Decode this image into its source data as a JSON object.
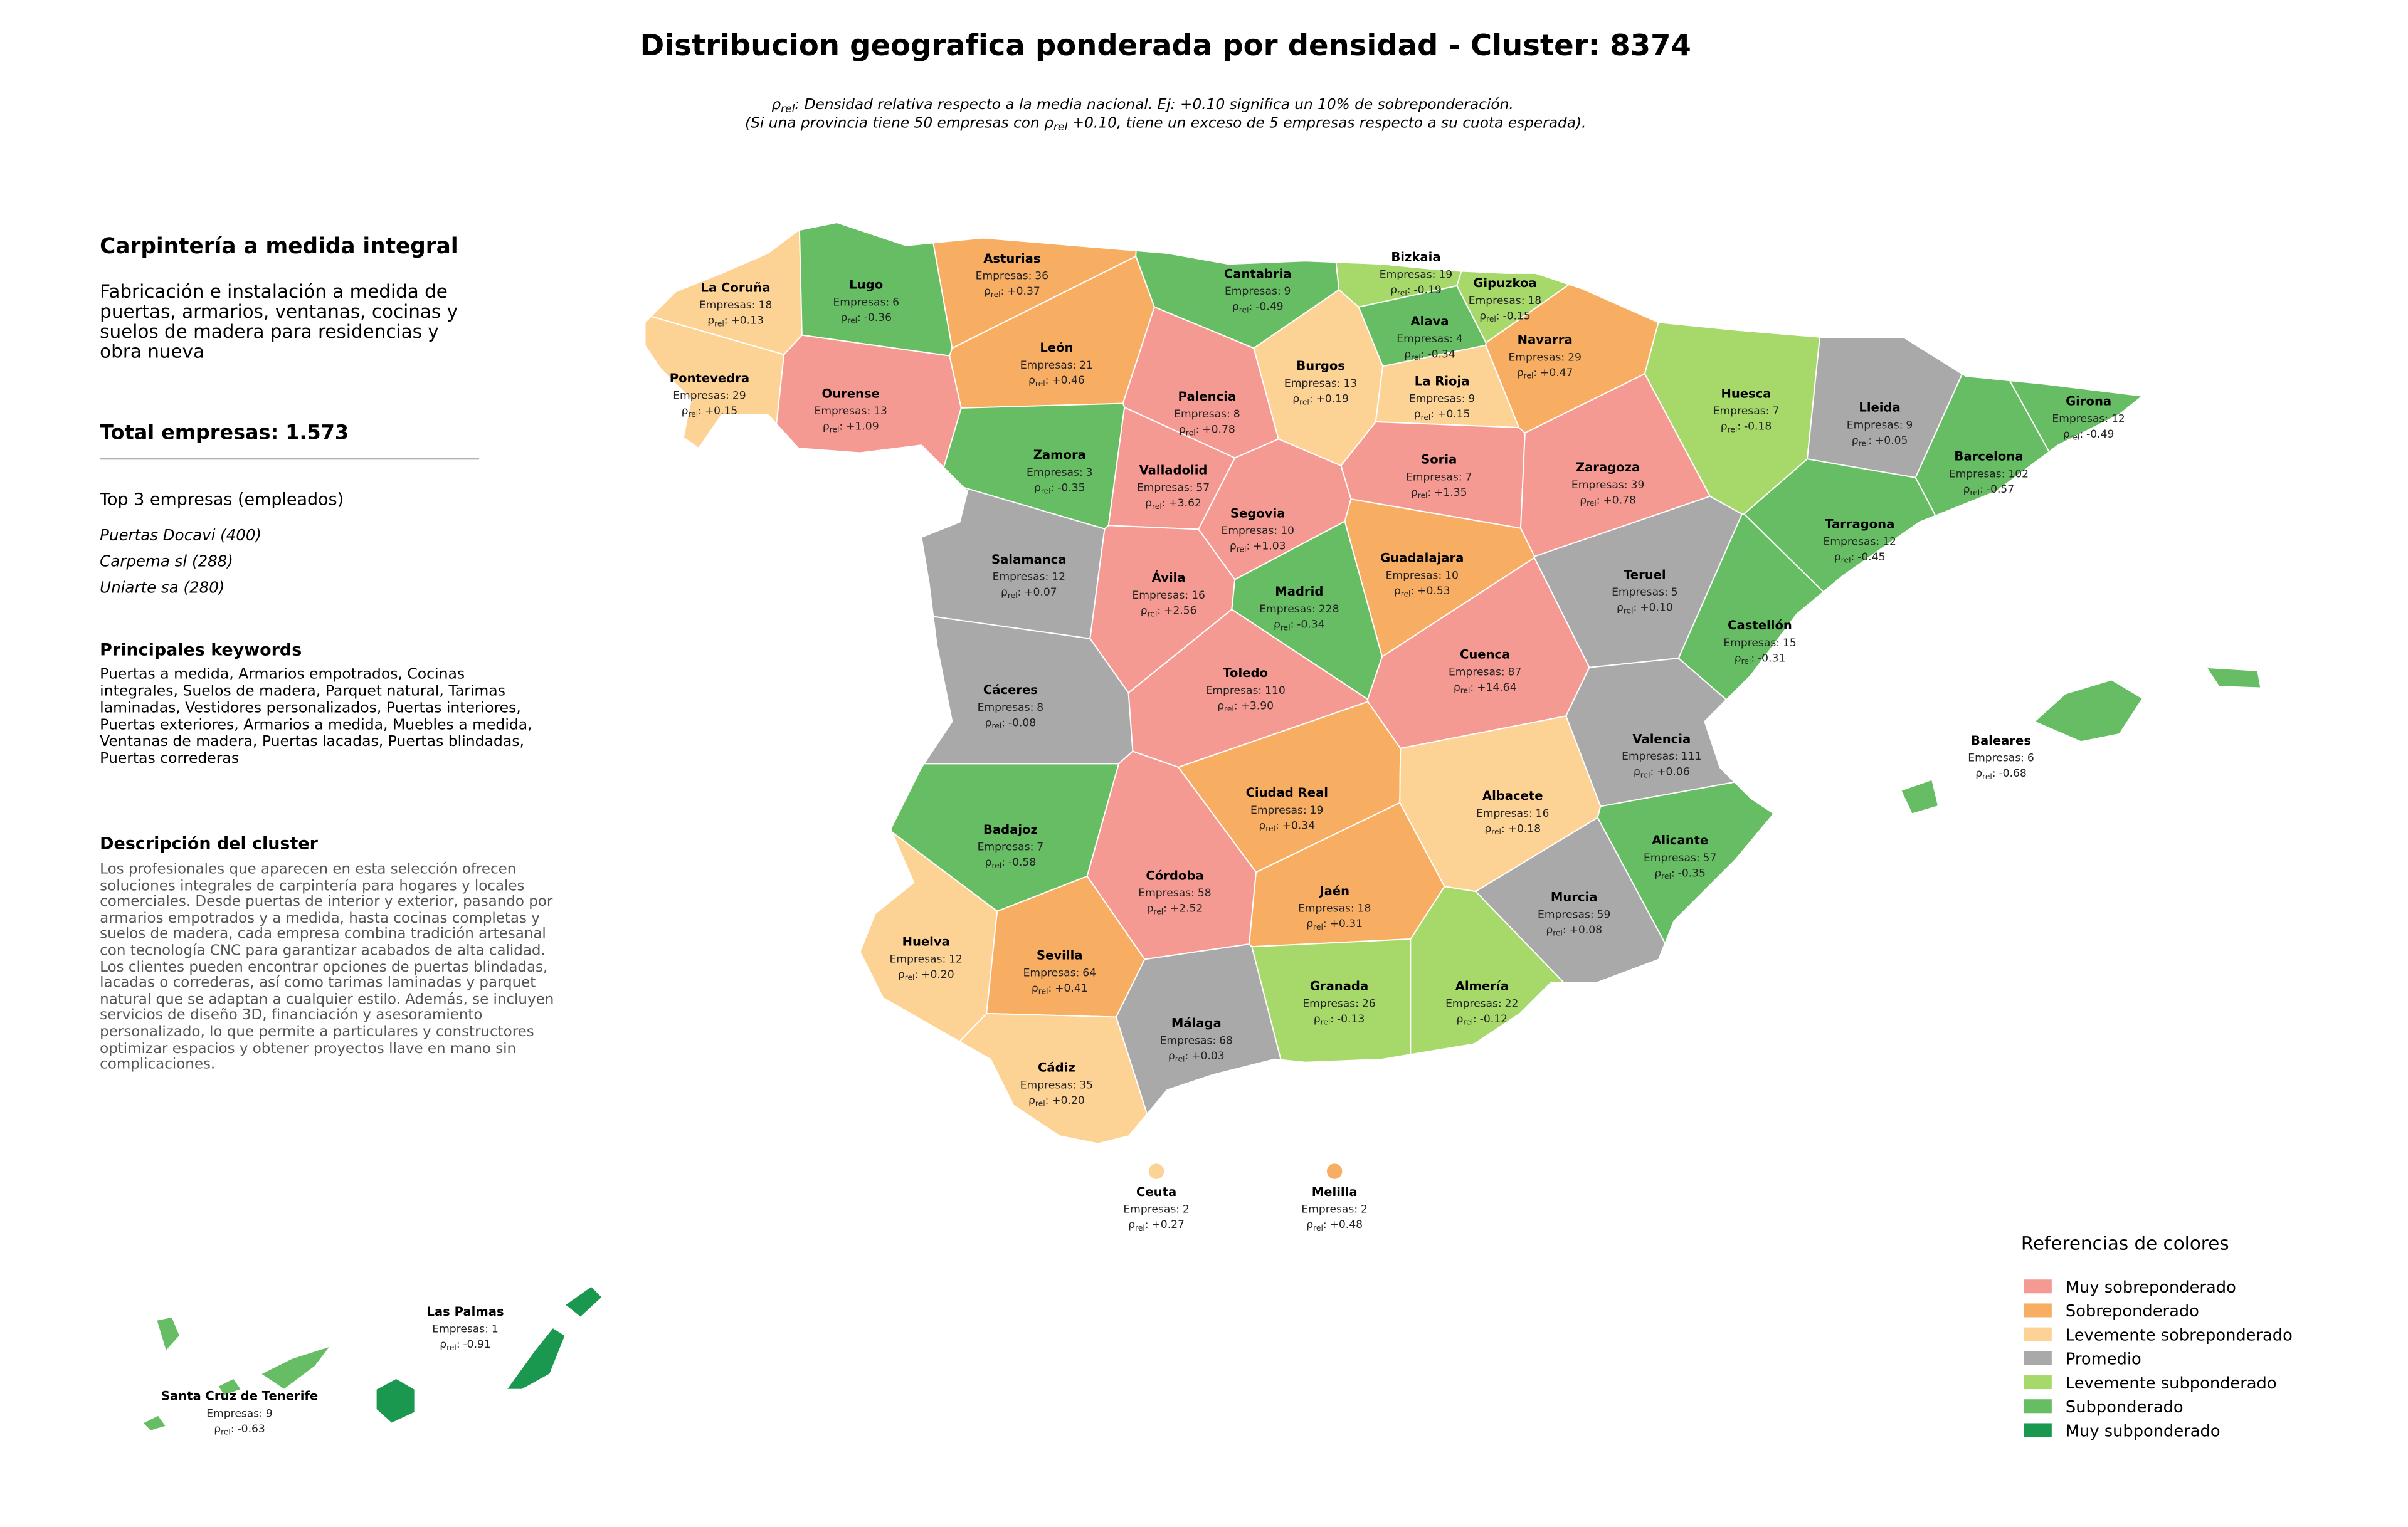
{
  "title": "Distribucion geografica ponderada por densidad - Cluster: 8374",
  "subtitle": {
    "line1_text": ": Densidad relativa respecto a la media nacional. Ej: +0.10 significa un 10% de sobreponderación.",
    "line2_start": "(Si una provincia tiene 50 empresas con ",
    "line2_end": " +0.10, tiene un exceso de 5 empresas respecto a su cuota esperada)."
  },
  "panel": {
    "heading": "Carpintería a medida integral",
    "description": "Fabricación e instalación a medida de puertas, armarios, ventanas, cocinas y suelos de madera para residencias y obra nueva",
    "total": "Total empresas: 1.573",
    "top_heading": "Top 3 empresas (empleados)",
    "top_companies": [
      "Puertas Docavi (400)",
      "Carpema sl (288)",
      "Uniarte sa (280)"
    ],
    "keywords_heading": "Principales keywords",
    "keywords": "Puertas a medida, Armarios empotrados, Cocinas integrales, Suelos de madera, Parquet natural, Tarimas laminadas, Vestidores personalizados, Puertas interiores, Puertas exteriores, Armarios a medida, Muebles a medida, Ventanas de madera, Puertas lacadas, Puertas blindadas, Puertas correderas",
    "cluster_heading": "Descripción del cluster",
    "cluster_text": "Los profesionales que aparecen en esta selección ofrecen soluciones integrales de carpintería para hogares y locales comerciales. Desde puertas de interior y exterior, pasando por armarios empotrados y a medida, hasta cocinas completas y suelos de madera, cada empresa combina tradición artesanal con tecnología CNC para garantizar acabados de alta calidad. Los clientes pueden encontrar opciones de puertas blindadas, lacadas o correderas, así como tarimas laminadas y parquet natural que se adaptan a cualquier estilo. Además, se incluyen servicios de diseño 3D, financiación y asesoramiento personalizado, lo que permite a particulares y constructores optimizar espacios y obtener proyectos llave en mano sin complicaciones."
  },
  "legend": {
    "title": "Referencias de colores",
    "items": [
      {
        "label": "Muy sobreponderado",
        "color": "#f59a92"
      },
      {
        "label": "Sobreponderado",
        "color": "#f8ae62"
      },
      {
        "label": "Levemente sobreponderado",
        "color": "#fdd395"
      },
      {
        "label": "Promedio",
        "color": "#a9a9a9"
      },
      {
        "label": "Levemente subponderado",
        "color": "#a6d96a"
      },
      {
        "label": "Subponderado",
        "color": "#66bd63"
      },
      {
        "label": "Muy subponderado",
        "color": "#1a9850"
      }
    ]
  },
  "map": {
    "count_label": "Empresas:",
    "rho_symbol": "ρ",
    "rho_sub": "rel",
    "rho_suffix": ":",
    "provinces": [
      {
        "name": "La Coruña",
        "empresas": 18,
        "rho": 0.13,
        "rho_label": "+0.13",
        "color": "#fdd395"
      },
      {
        "name": "Lugo",
        "empresas": 6,
        "rho": -0.36,
        "rho_label": "-0.36",
        "color": "#66bd63"
      },
      {
        "name": "Asturias",
        "empresas": 36,
        "rho": 0.37,
        "rho_label": "+0.37",
        "color": "#f8ae62"
      },
      {
        "name": "Cantabria",
        "empresas": 9,
        "rho": -0.49,
        "rho_label": "-0.49",
        "color": "#66bd63"
      },
      {
        "name": "Bizkaia",
        "empresas": 19,
        "rho": -0.19,
        "rho_label": "-0.19",
        "color": "#a6d96a"
      },
      {
        "name": "Gipuzkoa",
        "empresas": 18,
        "rho": -0.15,
        "rho_label": "-0.15",
        "color": "#a6d96a"
      },
      {
        "name": "Alava",
        "empresas": 4,
        "rho": -0.34,
        "rho_label": "-0.34",
        "color": "#66bd63"
      },
      {
        "name": "Navarra",
        "empresas": 29,
        "rho": 0.47,
        "rho_label": "+0.47",
        "color": "#f8ae62"
      },
      {
        "name": "Pontevedra",
        "empresas": 29,
        "rho": 0.15,
        "rho_label": "+0.15",
        "color": "#fdd395"
      },
      {
        "name": "Ourense",
        "empresas": 13,
        "rho": 1.09,
        "rho_label": "+1.09",
        "color": "#f59a92"
      },
      {
        "name": "León",
        "empresas": 21,
        "rho": 0.46,
        "rho_label": "+0.46",
        "color": "#f8ae62"
      },
      {
        "name": "Palencia",
        "empresas": 8,
        "rho": 0.78,
        "rho_label": "+0.78",
        "color": "#f59a92"
      },
      {
        "name": "Burgos",
        "empresas": 13,
        "rho": 0.19,
        "rho_label": "+0.19",
        "color": "#fdd395"
      },
      {
        "name": "La Rioja",
        "empresas": 9,
        "rho": 0.15,
        "rho_label": "+0.15",
        "color": "#fdd395"
      },
      {
        "name": "Huesca",
        "empresas": 7,
        "rho": -0.18,
        "rho_label": "-0.18",
        "color": "#a6d96a"
      },
      {
        "name": "Lleida",
        "empresas": 9,
        "rho": 0.05,
        "rho_label": "+0.05",
        "color": "#a9a9a9"
      },
      {
        "name": "Girona",
        "empresas": 12,
        "rho": -0.49,
        "rho_label": "-0.49",
        "color": "#66bd63"
      },
      {
        "name": "Barcelona",
        "empresas": 102,
        "rho": -0.57,
        "rho_label": "-0.57",
        "color": "#66bd63"
      },
      {
        "name": "Zamora",
        "empresas": 3,
        "rho": -0.35,
        "rho_label": "-0.35",
        "color": "#66bd63"
      },
      {
        "name": "Valladolid",
        "empresas": 57,
        "rho": 3.62,
        "rho_label": "+3.62",
        "color": "#f59a92"
      },
      {
        "name": "Soria",
        "empresas": 7,
        "rho": 1.35,
        "rho_label": "+1.35",
        "color": "#f59a92"
      },
      {
        "name": "Zaragoza",
        "empresas": 39,
        "rho": 0.78,
        "rho_label": "+0.78",
        "color": "#f59a92"
      },
      {
        "name": "Segovia",
        "empresas": 10,
        "rho": 1.03,
        "rho_label": "+1.03",
        "color": "#f59a92"
      },
      {
        "name": "Tarragona",
        "empresas": 12,
        "rho": -0.45,
        "rho_label": "-0.45",
        "color": "#66bd63"
      },
      {
        "name": "Salamanca",
        "empresas": 12,
        "rho": 0.07,
        "rho_label": "+0.07",
        "color": "#a9a9a9"
      },
      {
        "name": "Guadalajara",
        "empresas": 10,
        "rho": 0.53,
        "rho_label": "+0.53",
        "color": "#f8ae62"
      },
      {
        "name": "Teruel",
        "empresas": 5,
        "rho": 0.1,
        "rho_label": "+0.10",
        "color": "#a9a9a9"
      },
      {
        "name": "Ávila",
        "empresas": 16,
        "rho": 2.56,
        "rho_label": "+2.56",
        "color": "#f59a92"
      },
      {
        "name": "Madrid",
        "empresas": 228,
        "rho": -0.34,
        "rho_label": "-0.34",
        "color": "#66bd63"
      },
      {
        "name": "Castellón",
        "empresas": 15,
        "rho": -0.31,
        "rho_label": "-0.31",
        "color": "#66bd63"
      },
      {
        "name": "Cuenca",
        "empresas": 87,
        "rho": 14.64,
        "rho_label": "+14.64",
        "color": "#f59a92"
      },
      {
        "name": "Toledo",
        "empresas": 110,
        "rho": 3.9,
        "rho_label": "+3.90",
        "color": "#f59a92"
      },
      {
        "name": "Cáceres",
        "empresas": 8,
        "rho": -0.08,
        "rho_label": "-0.08",
        "color": "#a9a9a9"
      },
      {
        "name": "Valencia",
        "empresas": 111,
        "rho": 0.06,
        "rho_label": "+0.06",
        "color": "#a9a9a9"
      },
      {
        "name": "Baleares",
        "empresas": 6,
        "rho": -0.68,
        "rho_label": "-0.68",
        "color": "#66bd63"
      },
      {
        "name": "Ciudad Real",
        "empresas": 19,
        "rho": 0.34,
        "rho_label": "+0.34",
        "color": "#f8ae62"
      },
      {
        "name": "Albacete",
        "empresas": 16,
        "rho": 0.18,
        "rho_label": "+0.18",
        "color": "#fdd395"
      },
      {
        "name": "Badajoz",
        "empresas": 7,
        "rho": -0.58,
        "rho_label": "-0.58",
        "color": "#66bd63"
      },
      {
        "name": "Alicante",
        "empresas": 57,
        "rho": -0.35,
        "rho_label": "-0.35",
        "color": "#66bd63"
      },
      {
        "name": "Córdoba",
        "empresas": 58,
        "rho": 2.52,
        "rho_label": "+2.52",
        "color": "#f59a92"
      },
      {
        "name": "Jaén",
        "empresas": 18,
        "rho": 0.31,
        "rho_label": "+0.31",
        "color": "#f8ae62"
      },
      {
        "name": "Murcia",
        "empresas": 59,
        "rho": 0.08,
        "rho_label": "+0.08",
        "color": "#a9a9a9"
      },
      {
        "name": "Huelva",
        "empresas": 12,
        "rho": 0.2,
        "rho_label": "+0.20",
        "color": "#fdd395"
      },
      {
        "name": "Sevilla",
        "empresas": 64,
        "rho": 0.41,
        "rho_label": "+0.41",
        "color": "#f8ae62"
      },
      {
        "name": "Granada",
        "empresas": 26,
        "rho": -0.13,
        "rho_label": "-0.13",
        "color": "#a6d96a"
      },
      {
        "name": "Almería",
        "empresas": 22,
        "rho": -0.12,
        "rho_label": "-0.12",
        "color": "#a6d96a"
      },
      {
        "name": "Málaga",
        "empresas": 68,
        "rho": 0.03,
        "rho_label": "+0.03",
        "color": "#a9a9a9"
      },
      {
        "name": "Cádiz",
        "empresas": 35,
        "rho": 0.2,
        "rho_label": "+0.20",
        "color": "#fdd395"
      },
      {
        "name": "Ceuta",
        "empresas": 2,
        "rho": 0.27,
        "rho_label": "+0.27",
        "color": "#fdd395"
      },
      {
        "name": "Melilla",
        "empresas": 2,
        "rho": 0.48,
        "rho_label": "+0.48",
        "color": "#f8ae62"
      },
      {
        "name": "Las Palmas",
        "empresas": 1,
        "rho": -0.91,
        "rho_label": "-0.91",
        "color": "#1a9850"
      },
      {
        "name": "Santa Cruz de Tenerife",
        "empresas": 9,
        "rho": -0.63,
        "rho_label": "-0.63",
        "color": "#66bd63"
      }
    ]
  }
}
